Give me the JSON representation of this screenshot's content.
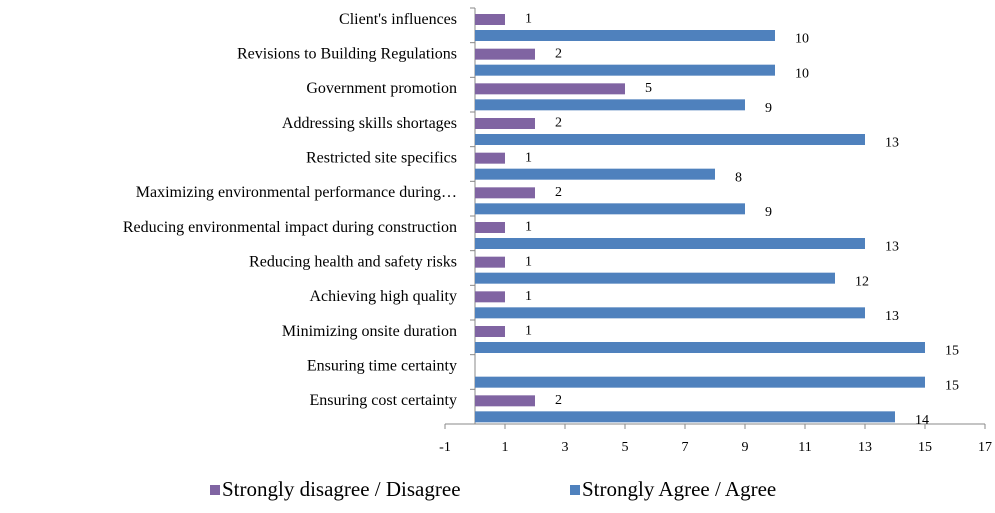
{
  "chart_data": {
    "type": "hbar",
    "categories": [
      "Client's influences",
      "Revisions to Building Regulations",
      "Government promotion",
      "Addressing skills shortages",
      "Restricted site specifics",
      "Maximizing environmental performance during…",
      "Reducing environmental impact during construction",
      "Reducing health and safety risks",
      "Achieving high quality",
      "Minimizing onsite duration",
      "Ensuring time certainty",
      "Ensuring cost certainty"
    ],
    "series": [
      {
        "name": "Strongly disagree / Disagree",
        "color": "#8064a2",
        "values": [
          1,
          2,
          5,
          2,
          1,
          2,
          1,
          1,
          1,
          1,
          null,
          2
        ]
      },
      {
        "name": "Strongly Agree / Agree",
        "color": "#4f81bd",
        "values": [
          10,
          10,
          9,
          13,
          8,
          9,
          13,
          12,
          13,
          15,
          15,
          14
        ]
      }
    ],
    "xlim": [
      -1,
      17
    ],
    "xticks": [
      -1,
      1,
      3,
      5,
      7,
      9,
      11,
      13,
      15,
      17
    ],
    "grid": false,
    "legend": "bottom"
  }
}
